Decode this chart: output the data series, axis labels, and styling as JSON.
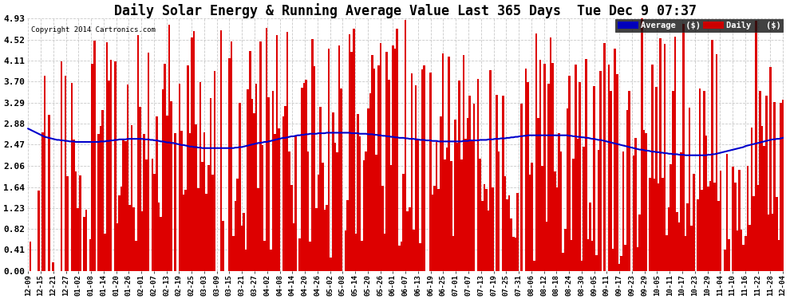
{
  "title": "Daily Solar Energy & Running Average Value Last 365 Days  Tue Dec 9 07:37",
  "copyright": "Copyright 2014 Cartronics.com",
  "ylabel_values": [
    0.0,
    0.41,
    0.82,
    1.23,
    1.64,
    2.06,
    2.47,
    2.88,
    3.29,
    3.7,
    4.11,
    4.52,
    4.93
  ],
  "ylim": [
    0.0,
    4.93
  ],
  "bar_color": "#dd0000",
  "avg_color": "#0000cc",
  "bg_color": "#ffffff",
  "grid_color": "#bbbbbb",
  "legend_avg_bg": "#0000bb",
  "legend_daily_bg": "#cc0000",
  "title_fontsize": 12,
  "tick_fontsize": 8,
  "n_days": 365,
  "x_tick_labels": [
    "12-09",
    "12-15",
    "12-21",
    "12-27",
    "01-02",
    "01-08",
    "01-14",
    "01-20",
    "01-26",
    "02-01",
    "02-07",
    "02-13",
    "02-19",
    "02-25",
    "03-03",
    "03-09",
    "03-15",
    "03-21",
    "03-27",
    "04-02",
    "04-08",
    "04-14",
    "04-20",
    "04-26",
    "05-02",
    "05-08",
    "05-14",
    "05-20",
    "05-26",
    "06-01",
    "06-07",
    "06-13",
    "06-19",
    "06-25",
    "07-01",
    "07-07",
    "07-13",
    "07-19",
    "07-25",
    "07-31",
    "08-06",
    "08-12",
    "08-18",
    "08-24",
    "08-30",
    "09-05",
    "09-11",
    "09-17",
    "09-23",
    "09-29",
    "10-05",
    "10-11",
    "10-17",
    "10-23",
    "10-29",
    "11-04",
    "11-10",
    "11-16",
    "11-22",
    "11-28",
    "12-04"
  ],
  "avg_line_values": [
    2.78,
    2.76,
    2.74,
    2.72,
    2.7,
    2.68,
    2.66,
    2.64,
    2.62,
    2.61,
    2.6,
    2.59,
    2.58,
    2.57,
    2.56,
    2.56,
    2.55,
    2.55,
    2.54,
    2.54,
    2.53,
    2.53,
    2.53,
    2.52,
    2.52,
    2.52,
    2.52,
    2.52,
    2.52,
    2.52,
    2.52,
    2.52,
    2.52,
    2.52,
    2.52,
    2.53,
    2.53,
    2.53,
    2.54,
    2.54,
    2.55,
    2.55,
    2.56,
    2.56,
    2.57,
    2.57,
    2.57,
    2.57,
    2.58,
    2.58,
    2.58,
    2.58,
    2.58,
    2.58,
    2.58,
    2.58,
    2.57,
    2.57,
    2.57,
    2.56,
    2.56,
    2.55,
    2.55,
    2.54,
    2.53,
    2.53,
    2.52,
    2.51,
    2.51,
    2.5,
    2.5,
    2.49,
    2.48,
    2.47,
    2.46,
    2.46,
    2.45,
    2.44,
    2.43,
    2.43,
    2.42,
    2.42,
    2.41,
    2.41,
    2.4,
    2.4,
    2.4,
    2.4,
    2.4,
    2.4,
    2.4,
    2.4,
    2.4,
    2.4,
    2.4,
    2.4,
    2.4,
    2.4,
    2.4,
    2.4,
    2.41,
    2.41,
    2.42,
    2.42,
    2.43,
    2.44,
    2.45,
    2.46,
    2.47,
    2.48,
    2.49,
    2.5,
    2.5,
    2.51,
    2.52,
    2.52,
    2.53,
    2.54,
    2.55,
    2.56,
    2.57,
    2.58,
    2.59,
    2.6,
    2.6,
    2.61,
    2.62,
    2.63,
    2.63,
    2.64,
    2.65,
    2.65,
    2.66,
    2.66,
    2.67,
    2.67,
    2.68,
    2.68,
    2.68,
    2.68,
    2.69,
    2.69,
    2.69,
    2.69,
    2.7,
    2.7,
    2.7,
    2.7,
    2.7,
    2.7,
    2.7,
    2.7,
    2.7,
    2.7,
    2.7,
    2.7,
    2.69,
    2.69,
    2.69,
    2.69,
    2.68,
    2.68,
    2.68,
    2.68,
    2.67,
    2.67,
    2.67,
    2.66,
    2.66,
    2.65,
    2.65,
    2.64,
    2.64,
    2.63,
    2.63,
    2.62,
    2.62,
    2.61,
    2.61,
    2.6,
    2.6,
    2.6,
    2.59,
    2.59,
    2.58,
    2.58,
    2.58,
    2.57,
    2.57,
    2.56,
    2.56,
    2.56,
    2.55,
    2.55,
    2.55,
    2.54,
    2.54,
    2.54,
    2.53,
    2.53,
    2.53,
    2.53,
    2.53,
    2.53,
    2.53,
    2.53,
    2.53,
    2.53,
    2.53,
    2.53,
    2.54,
    2.54,
    2.54,
    2.55,
    2.55,
    2.55,
    2.55,
    2.55,
    2.56,
    2.56,
    2.56,
    2.56,
    2.57,
    2.57,
    2.57,
    2.58,
    2.58,
    2.58,
    2.59,
    2.59,
    2.59,
    2.6,
    2.6,
    2.61,
    2.61,
    2.62,
    2.62,
    2.63,
    2.63,
    2.64,
    2.64,
    2.65,
    2.65,
    2.65,
    2.65,
    2.65,
    2.65,
    2.65,
    2.65,
    2.65,
    2.65,
    2.65,
    2.65,
    2.65,
    2.65,
    2.65,
    2.65,
    2.65,
    2.65,
    2.65,
    2.65,
    2.64,
    2.64,
    2.63,
    2.63,
    2.62,
    2.62,
    2.61,
    2.61,
    2.6,
    2.6,
    2.59,
    2.58,
    2.58,
    2.57,
    2.56,
    2.56,
    2.55,
    2.54,
    2.53,
    2.52,
    2.51,
    2.5,
    2.49,
    2.48,
    2.47,
    2.46,
    2.45,
    2.44,
    2.43,
    2.42,
    2.41,
    2.4,
    2.39,
    2.38,
    2.37,
    2.37,
    2.36,
    2.35,
    2.35,
    2.34,
    2.33,
    2.33,
    2.32,
    2.32,
    2.31,
    2.31,
    2.3,
    2.3,
    2.29,
    2.29,
    2.28,
    2.28,
    2.28,
    2.27,
    2.27,
    2.27,
    2.26,
    2.26,
    2.26,
    2.26,
    2.26,
    2.26,
    2.26,
    2.26,
    2.26,
    2.26,
    2.26,
    2.27,
    2.27,
    2.28,
    2.28,
    2.29,
    2.3,
    2.31,
    2.32,
    2.33,
    2.34,
    2.35,
    2.36,
    2.37,
    2.38,
    2.39,
    2.4,
    2.41,
    2.42,
    2.44,
    2.45,
    2.46,
    2.47,
    2.48,
    2.49,
    2.5,
    2.51,
    2.52,
    2.53,
    2.54,
    2.55,
    2.56,
    2.57,
    2.57,
    2.58,
    2.58,
    2.59,
    2.6
  ]
}
